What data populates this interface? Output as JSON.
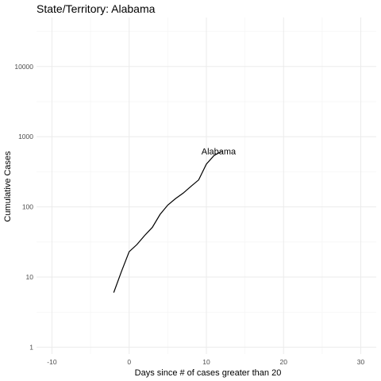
{
  "chart_data": {
    "type": "line",
    "title": "State/Territory: Alabama",
    "xlabel": "Days since # of cases greater than 20",
    "ylabel": "Cumulative Cases",
    "xlim": [
      -12,
      32
    ],
    "ylim": [
      0.8,
      50000
    ],
    "y_scale": "log10",
    "x_ticks": [
      -10,
      0,
      10,
      20,
      30
    ],
    "x_tick_labels": [
      "-10",
      "0",
      "10",
      "20",
      "30"
    ],
    "y_ticks": [
      1,
      10,
      100,
      1000,
      10000
    ],
    "y_tick_labels": [
      "1",
      "10",
      "100",
      "1000",
      "10000"
    ],
    "grid": true,
    "series": [
      {
        "name": "Alabama",
        "x": [
          -2,
          -1,
          0,
          1,
          2,
          3,
          4,
          5,
          6,
          7,
          8,
          9,
          10,
          11,
          12
        ],
        "y": [
          6,
          12,
          23,
          29,
          39,
          51,
          78,
          106,
          131,
          157,
          196,
          242,
          407,
          540,
          620
        ]
      }
    ],
    "series_label": "Alabama",
    "line_color": "#000000"
  }
}
